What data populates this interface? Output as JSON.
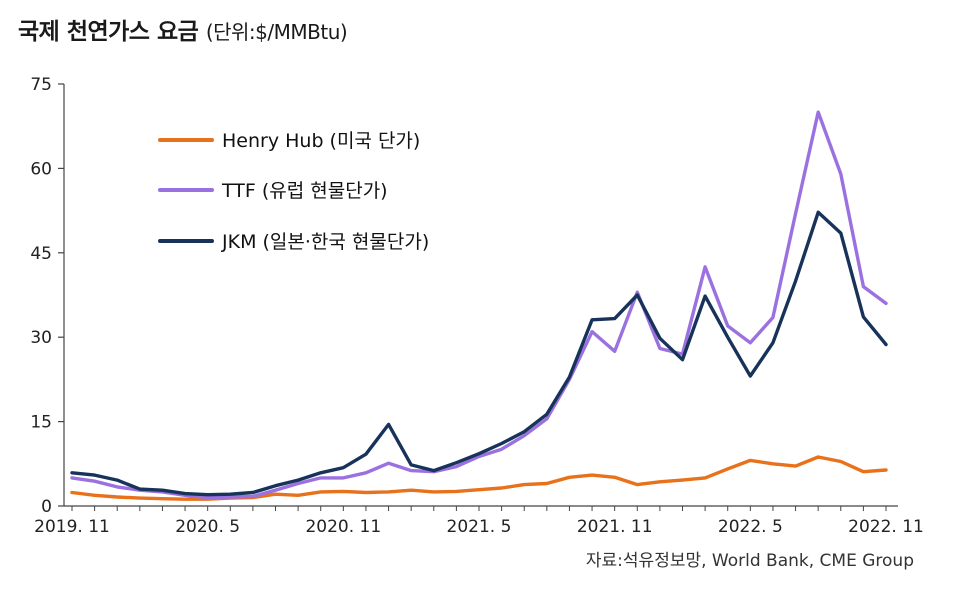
{
  "header": {
    "title": "국제 천연가스 요금",
    "unit": "(단위:$/MMBtu)"
  },
  "source": "자료:석유정보망, World Bank, CME Group",
  "chart_data": {
    "type": "line",
    "title": "국제 천연가스 요금",
    "ylabel": "$/MMBtu",
    "xlabel": "",
    "ylim": [
      0,
      75
    ],
    "yticks": [
      "0",
      "15",
      "30",
      "45",
      "60",
      "75"
    ],
    "ytick_values": [
      0,
      15,
      30,
      45,
      60,
      75
    ],
    "xtick_labels": [
      "2019. 11",
      "2020. 5",
      "2020. 11",
      "2021. 5",
      "2021. 11",
      "2022. 5",
      "2022. 11"
    ],
    "xtick_index": [
      0,
      6,
      12,
      18,
      24,
      30,
      36
    ],
    "x": [
      "2019.11",
      "2019.12",
      "2020.1",
      "2020.2",
      "2020.3",
      "2020.4",
      "2020.5",
      "2020.6",
      "2020.7",
      "2020.8",
      "2020.9",
      "2020.10",
      "2020.11",
      "2020.12",
      "2021.1",
      "2021.2",
      "2021.3",
      "2021.4",
      "2021.5",
      "2021.6",
      "2021.7",
      "2021.8",
      "2021.9",
      "2021.10",
      "2021.11",
      "2021.12",
      "2022.1",
      "2022.2",
      "2022.3",
      "2022.4",
      "2022.5",
      "2022.6",
      "2022.7",
      "2022.8",
      "2022.9",
      "2022.10",
      "2022.11"
    ],
    "legend_position": "top-left",
    "series": [
      {
        "name": "Henry Hub",
        "label_note": "(미국 단가)",
        "color": "#e8711b",
        "values": [
          2.4,
          1.9,
          1.6,
          1.4,
          1.3,
          1.2,
          1.2,
          1.4,
          1.5,
          2.1,
          1.9,
          2.5,
          2.6,
          2.4,
          2.5,
          2.8,
          2.5,
          2.6,
          2.9,
          3.2,
          3.8,
          4.0,
          5.1,
          5.5,
          5.1,
          3.8,
          4.3,
          4.6,
          5.0,
          6.6,
          8.1,
          7.5,
          7.1,
          8.7,
          7.9,
          6.1,
          6.4
        ]
      },
      {
        "name": "TTF",
        "label_note": "(유럽 현물단가)",
        "color": "#9b71e0",
        "values": [
          5.0,
          4.4,
          3.4,
          2.8,
          2.5,
          1.9,
          1.5,
          1.6,
          1.7,
          2.8,
          4.0,
          5.0,
          5.0,
          5.9,
          7.6,
          6.3,
          6.1,
          7.0,
          8.8,
          10.1,
          12.5,
          15.5,
          22.5,
          31.0,
          27.5,
          38.0,
          28.0,
          27.0,
          42.5,
          32.0,
          29.0,
          33.5,
          52.0,
          70.0,
          59.0,
          39.0,
          36.0
        ]
      },
      {
        "name": "JKM",
        "label_note": "(일본·한국 현물단가)",
        "color": "#18335a",
        "values": [
          5.9,
          5.5,
          4.6,
          3.0,
          2.8,
          2.2,
          2.0,
          2.1,
          2.4,
          3.6,
          4.6,
          5.9,
          6.8,
          9.2,
          14.5,
          7.3,
          6.3,
          7.7,
          9.3,
          11.1,
          13.2,
          16.3,
          22.9,
          33.1,
          33.3,
          37.5,
          29.8,
          26.0,
          37.3,
          30.0,
          23.1,
          29.0,
          40.0,
          52.2,
          48.5,
          33.6,
          28.7
        ]
      }
    ]
  }
}
